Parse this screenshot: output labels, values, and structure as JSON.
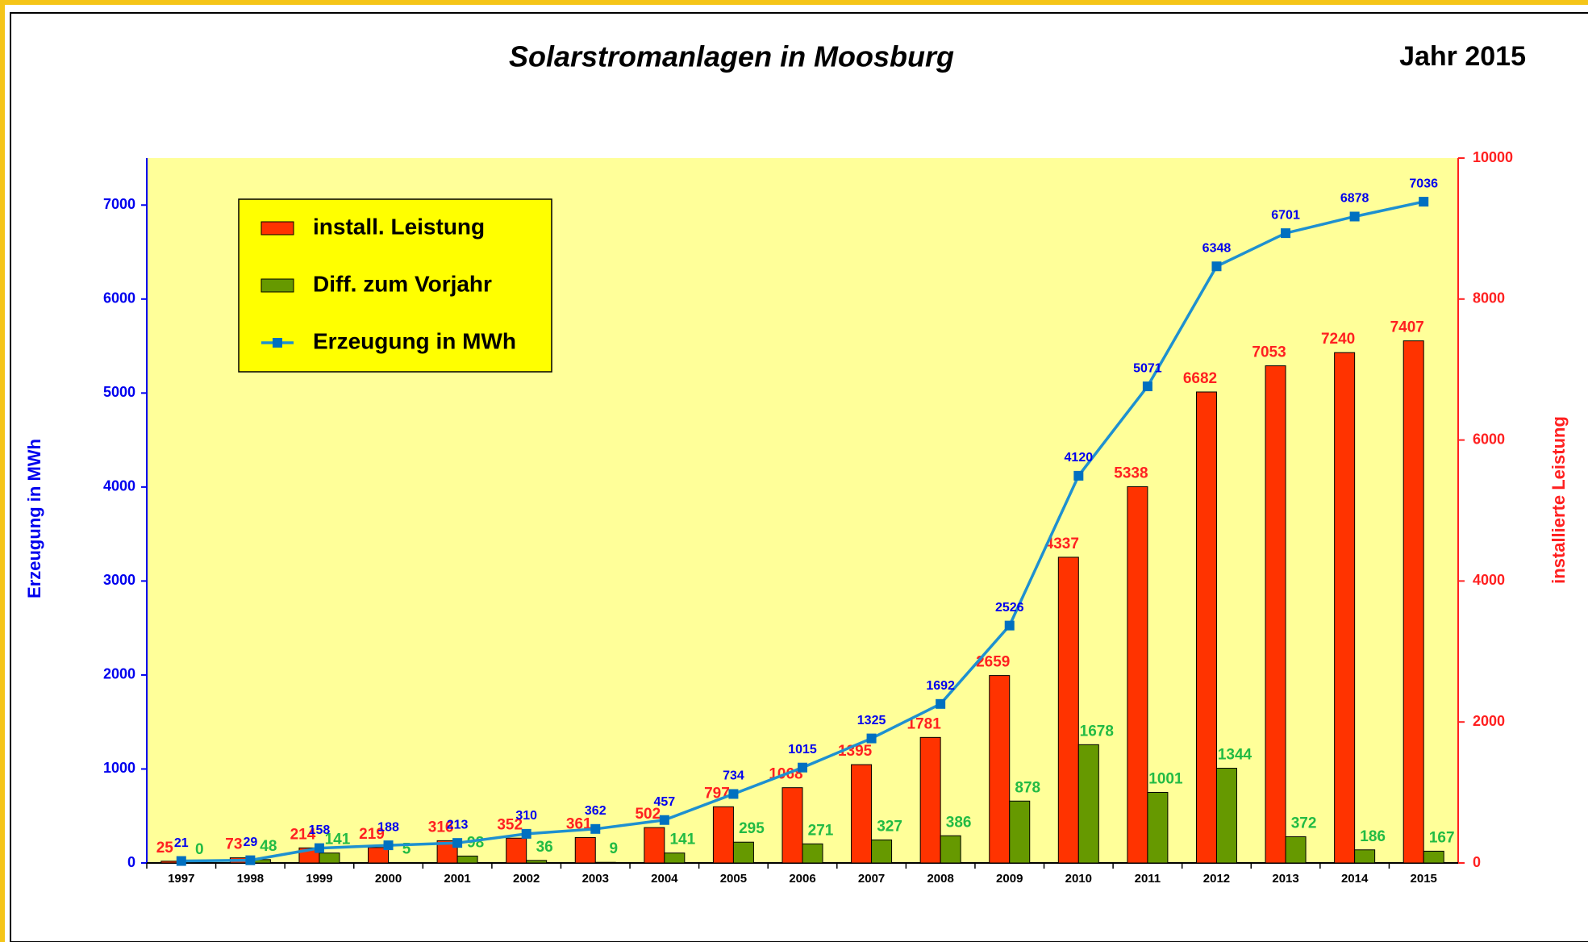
{
  "chart_data": {
    "type": "bar",
    "title": "Solarstromanlagen in Moosburg",
    "subtitle": "Jahr 2015",
    "y_label": "Erzeugung in MWh",
    "y2_label": "installierte Leistung",
    "categories": [
      "1997",
      "1998",
      "1999",
      "2000",
      "2001",
      "2002",
      "2003",
      "2004",
      "2005",
      "2006",
      "2007",
      "2008",
      "2009",
      "2010",
      "2011",
      "2012",
      "2013",
      "2014",
      "2015"
    ],
    "series": [
      {
        "name": "install. Leistung",
        "type": "bar",
        "axis": "y2",
        "color": "#ff3300",
        "label_color": "#ff2020",
        "values": [
          25,
          73,
          214,
          219,
          316,
          352,
          361,
          502,
          797,
          1068,
          1395,
          1781,
          2659,
          4337,
          5338,
          6682,
          7053,
          7240,
          7407
        ]
      },
      {
        "name": "Diff. zum Vorjahr",
        "type": "bar",
        "axis": "y2",
        "color": "#669900",
        "label_color": "#22bb44",
        "values": [
          0,
          48,
          141,
          5,
          98,
          36,
          9,
          141,
          295,
          271,
          327,
          386,
          878,
          1678,
          1001,
          1344,
          372,
          186,
          167
        ]
      },
      {
        "name": "Erzeugung in MWh",
        "type": "line",
        "axis": "y",
        "color": "#1e90d0",
        "marker_color": "#0070c0",
        "label_color": "#0000ee",
        "values": [
          21,
          29,
          158,
          188,
          213,
          310,
          362,
          457,
          734,
          1015,
          1325,
          1692,
          2526,
          4120,
          5071,
          6348,
          6701,
          6878,
          7036
        ]
      }
    ],
    "ylim": [
      0,
      7500
    ],
    "yticks": [
      0,
      1000,
      2000,
      3000,
      4000,
      5000,
      6000,
      7000
    ],
    "y2lim": [
      0,
      10000
    ],
    "y2ticks": [
      0,
      2000,
      4000,
      6000,
      8000,
      10000
    ],
    "legend": "upper left",
    "plot_background": "#ffff99",
    "legend_background": "#ffff00"
  }
}
